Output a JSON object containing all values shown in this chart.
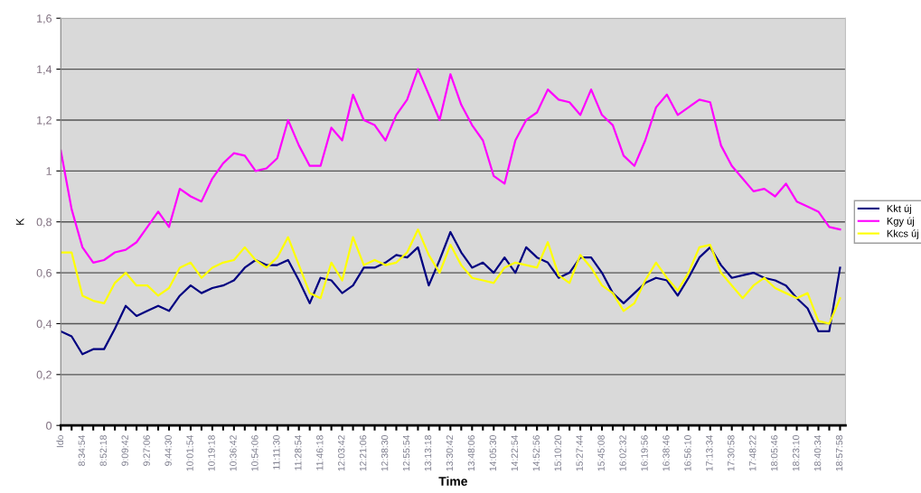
{
  "chart_data": {
    "type": "line",
    "xlabel": "Time",
    "ylabel": "K",
    "categories": [
      "Ido",
      null,
      "8:34:54",
      null,
      "8:52:18",
      null,
      "9:09:42",
      null,
      "9:27:06",
      null,
      "9:44:30",
      null,
      "10:01:54",
      null,
      "10:19:18",
      null,
      "10:36:42",
      null,
      "10:54:06",
      null,
      "11:11:30",
      null,
      "11:28:54",
      null,
      "11:46:18",
      null,
      "12:03:42",
      null,
      "12:21:06",
      null,
      "12:38:30",
      null,
      "12:55:54",
      null,
      "13:13:18",
      null,
      "13:30:42",
      null,
      "13:48:06",
      null,
      "14:05:30",
      null,
      "14:22:54",
      null,
      "14:52:56",
      null,
      "15:10:20",
      null,
      "15:27:44",
      null,
      "15:45:08",
      null,
      "16:02:32",
      null,
      "16:19:56",
      null,
      "16:38:46",
      null,
      "16:56:10",
      null,
      "17:13:34",
      null,
      "17:30:58",
      null,
      "17:48:22",
      null,
      "18:05:46",
      null,
      "18:23:10",
      null,
      "18:40:34",
      null,
      "18:57:58"
    ],
    "series": [
      {
        "name": "Kkt új",
        "color": "#000080",
        "values": [
          0.37,
          0.35,
          0.28,
          0.3,
          0.3,
          0.38,
          0.47,
          0.43,
          0.45,
          0.47,
          0.45,
          0.51,
          0.55,
          0.52,
          0.54,
          0.55,
          0.57,
          0.62,
          0.65,
          0.63,
          0.63,
          0.65,
          0.57,
          0.48,
          0.58,
          0.57,
          0.52,
          0.55,
          0.62,
          0.62,
          0.64,
          0.67,
          0.66,
          0.7,
          0.55,
          0.65,
          0.76,
          0.68,
          0.62,
          0.64,
          0.6,
          0.66,
          0.6,
          0.7,
          0.66,
          0.64,
          0.58,
          0.6,
          0.66,
          0.66,
          0.6,
          0.52,
          0.48,
          0.52,
          0.56,
          0.58,
          0.57,
          0.51,
          0.58,
          0.66,
          0.7,
          0.63,
          0.58,
          0.59,
          0.6,
          0.58,
          0.57,
          0.55,
          0.5,
          0.46,
          0.37,
          0.37,
          0.62
        ]
      },
      {
        "name": "Kgy új",
        "color": "#ff00ff",
        "values": [
          1.08,
          0.85,
          0.7,
          0.64,
          0.65,
          0.68,
          0.69,
          0.72,
          0.78,
          0.84,
          0.78,
          0.93,
          0.9,
          0.88,
          0.97,
          1.03,
          1.07,
          1.06,
          1.0,
          1.01,
          1.05,
          1.2,
          1.1,
          1.02,
          1.02,
          1.17,
          1.12,
          1.3,
          1.2,
          1.18,
          1.12,
          1.22,
          1.28,
          1.4,
          1.3,
          1.2,
          1.38,
          1.26,
          1.18,
          1.12,
          0.98,
          0.95,
          1.12,
          1.2,
          1.23,
          1.32,
          1.28,
          1.27,
          1.22,
          1.32,
          1.22,
          1.18,
          1.06,
          1.02,
          1.12,
          1.25,
          1.3,
          1.22,
          1.25,
          1.28,
          1.27,
          1.1,
          1.02,
          0.97,
          0.92,
          0.93,
          0.9,
          0.95,
          0.88,
          0.86,
          0.84,
          0.78,
          0.77
        ]
      },
      {
        "name": "Kkcs új",
        "color": "#ffff00",
        "values": [
          0.68,
          0.68,
          0.51,
          0.49,
          0.48,
          0.56,
          0.6,
          0.55,
          0.55,
          0.51,
          0.54,
          0.62,
          0.64,
          0.58,
          0.62,
          0.64,
          0.65,
          0.7,
          0.65,
          0.62,
          0.66,
          0.74,
          0.63,
          0.52,
          0.5,
          0.64,
          0.57,
          0.74,
          0.63,
          0.65,
          0.63,
          0.64,
          0.68,
          0.77,
          0.67,
          0.6,
          0.71,
          0.63,
          0.58,
          0.57,
          0.56,
          0.62,
          0.64,
          0.63,
          0.62,
          0.72,
          0.59,
          0.56,
          0.67,
          0.62,
          0.55,
          0.52,
          0.45,
          0.48,
          0.57,
          0.64,
          0.58,
          0.53,
          0.6,
          0.7,
          0.71,
          0.6,
          0.55,
          0.5,
          0.55,
          0.58,
          0.54,
          0.52,
          0.5,
          0.52,
          0.41,
          0.4,
          0.5
        ]
      }
    ],
    "ylim": [
      0,
      1.6
    ],
    "yticks": [
      0,
      {
        "value": 0.2,
        "label": "0,2"
      },
      {
        "value": 0.4,
        "label": "0,4"
      },
      {
        "value": 0.6,
        "label": "0,6"
      },
      {
        "value": 0.8,
        "label": "0,8"
      },
      1,
      {
        "value": 1.2,
        "label": "1,2"
      },
      {
        "value": 1.4,
        "label": "1,4"
      },
      {
        "value": 1.6,
        "label": "1,6"
      }
    ],
    "grid": "y",
    "legend": "right",
    "marker": "none",
    "line_style": "solid"
  }
}
